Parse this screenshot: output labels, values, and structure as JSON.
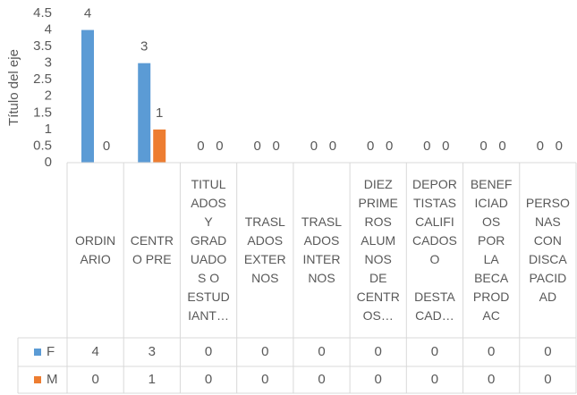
{
  "chart_data": {
    "type": "bar",
    "y_axis_title": "Título del eje",
    "categories": [
      "ORDIN\nARIO",
      "CENTR\nO PRE",
      "TITUL\nADOS\nY\nGRAD\nUADO\nS O\nESTUD\nIANT…",
      "TRASL\nADOS\nEXTER\nNOS",
      "TRASL\nADOS\nINTER\nNOS",
      "DIEZ\nPRIME\nROS\nALUM\nNOS\nDE\nCENTR\nOS…",
      "DEPOR\nTISTAS\nCALIFI\nCADOS\nO\n\nDESTA\nCAD…",
      "BENEF\nICIAD\nOS\nPOR\nLA\nBECA\nPROD\nAC",
      "PERSO\nNAS\nCON\nDISCA\nPACID\nAD"
    ],
    "series": [
      {
        "name": "F",
        "color": "#5b9bd5",
        "values": [
          4,
          3,
          0,
          0,
          0,
          0,
          0,
          0,
          0
        ]
      },
      {
        "name": "M",
        "color": "#ed7d31",
        "values": [
          0,
          1,
          0,
          0,
          0,
          0,
          0,
          0,
          0
        ]
      }
    ],
    "ylim": [
      0,
      4.5
    ],
    "yticks": [
      0,
      0.5,
      1,
      1.5,
      2,
      2.5,
      3,
      3.5,
      4,
      4.5
    ],
    "grid": false,
    "data_table": true
  }
}
